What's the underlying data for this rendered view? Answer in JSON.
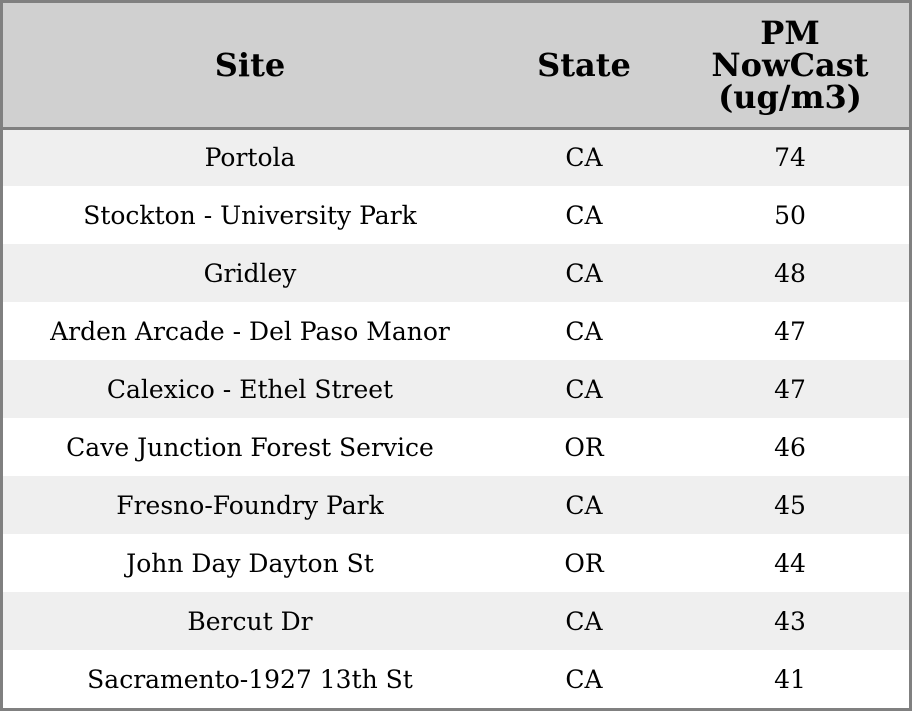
{
  "chart_data": {
    "type": "table",
    "columns": [
      "Site",
      "State",
      "PM NowCast (ug/m3)"
    ],
    "header_lines": [
      [
        "Site"
      ],
      [
        "State"
      ],
      [
        "PM",
        "NowCast",
        "(ug/m3)"
      ]
    ],
    "rows": [
      [
        "Portola",
        "CA",
        "74"
      ],
      [
        "Stockton - University Park",
        "CA",
        "50"
      ],
      [
        "Gridley",
        "CA",
        "48"
      ],
      [
        "Arden Arcade - Del Paso Manor",
        "CA",
        "47"
      ],
      [
        "Calexico - Ethel Street",
        "CA",
        "47"
      ],
      [
        "Cave Junction Forest Service",
        "OR",
        "46"
      ],
      [
        "Fresno-Foundry Park",
        "CA",
        "45"
      ],
      [
        "John Day Dayton St",
        "OR",
        "44"
      ],
      [
        "Bercut Dr",
        "CA",
        "43"
      ],
      [
        "Sacramento-1927 13th St",
        "CA",
        "41"
      ]
    ],
    "colors": {
      "header_background": "#d0d0d0",
      "stripe_background": "#efefef",
      "border": "#808080"
    }
  }
}
